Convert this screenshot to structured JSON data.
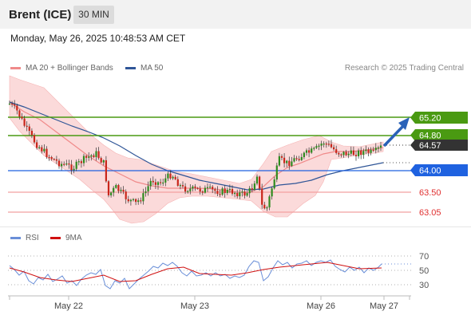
{
  "header": {
    "instrument": "Brent (ICE)",
    "timeframe": "30 MIN"
  },
  "datetime": "Monday, May 26, 2025 10:48:53 AM CET",
  "legend": {
    "items": [
      {
        "label": "MA 20 + Bollinger Bands",
        "color": "#f08a8a"
      },
      {
        "label": "MA 50",
        "color": "#2f5597"
      }
    ],
    "credit": "Research © 2025 Trading Central"
  },
  "levels": [
    {
      "value": 65.2,
      "label": "65.20",
      "color": "#4a9a12",
      "style": "resistance"
    },
    {
      "value": 64.8,
      "label": "64.80",
      "color": "#4a9a12",
      "style": "resistance"
    },
    {
      "value": 64.57,
      "label": "64.57",
      "color": "#333333",
      "style": "last"
    },
    {
      "value": 64.0,
      "label": "64.00",
      "color": "#1f62e0",
      "style": "pivot"
    },
    {
      "value": 63.5,
      "label": "63.50",
      "color": "#e03030",
      "style": "support"
    },
    {
      "value": 63.05,
      "label": "63.05",
      "color": "#e03030",
      "style": "support"
    }
  ],
  "rsi": {
    "legend": [
      {
        "label": "RSI",
        "color": "#6a8fd8"
      },
      {
        "label": "9MA",
        "color": "#d01010"
      }
    ],
    "ticks": [
      "70",
      "50",
      "30"
    ]
  },
  "x_axis": {
    "labels": [
      "May 22",
      "May 23",
      "May 26",
      "May 27"
    ]
  }
}
